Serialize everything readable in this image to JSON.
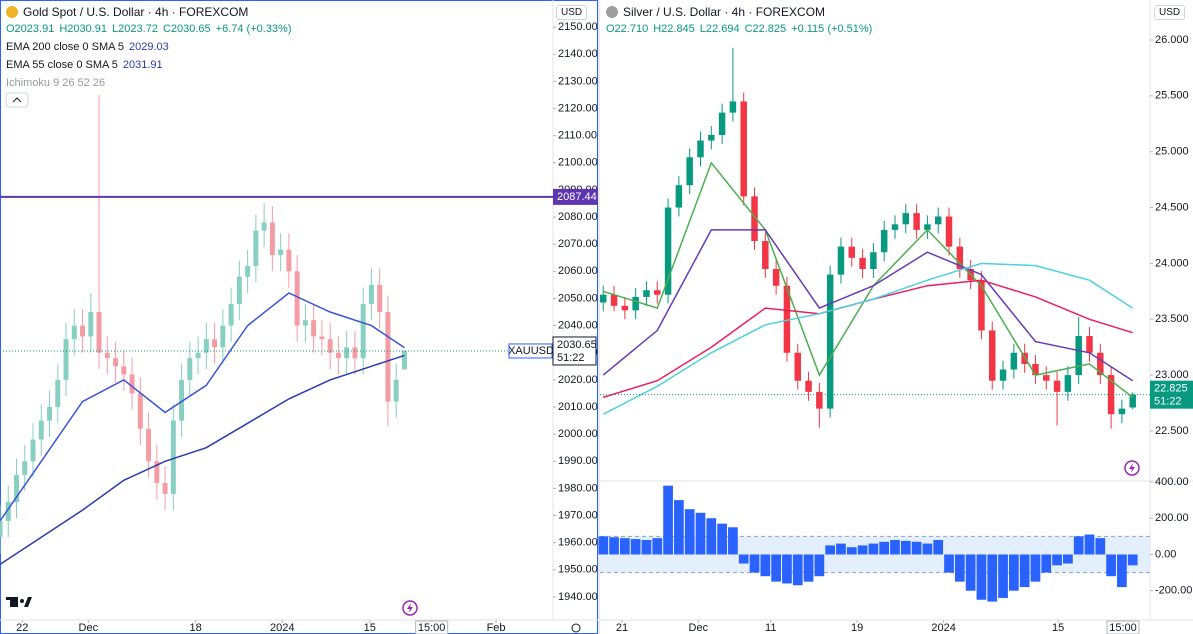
{
  "chart_data": [
    {
      "type": "candlestick",
      "title": "Gold Spot / U.S. Dollar · 4h · FOREXCOM",
      "currency": "USD",
      "quote": [
        "O2023.91",
        "H2030.91",
        "L2023.72",
        "C2030.65",
        "+6.74 (+0.33%)"
      ],
      "indicators": [
        {
          "name": "EMA 200 close 0 SMA 5",
          "value": 2029.03
        },
        {
          "name": "EMA 55 close 0 SMA 5",
          "value": 2031.91
        },
        {
          "name": "Ichimoku 9 26 52 26"
        }
      ],
      "up_color": "#86cfc1",
      "down_color": "#f49ca4",
      "x": [
        0,
        1,
        2,
        3,
        4,
        5,
        6,
        7,
        8,
        9,
        10,
        11,
        12,
        13,
        14,
        15,
        16,
        17,
        18,
        19,
        20,
        21,
        22,
        23,
        24,
        25,
        26,
        27,
        28,
        29,
        30,
        31,
        32,
        33,
        34,
        35,
        36,
        37,
        38,
        39,
        40,
        41,
        42,
        43,
        44,
        45,
        46,
        47,
        48,
        49
      ],
      "open": [
        1962,
        1968,
        1975,
        1985,
        1990,
        1998,
        2005,
        2010,
        2020,
        2035,
        2040,
        2036,
        2045,
        2030,
        2028,
        2025,
        2022,
        2015,
        2002,
        1990,
        1982,
        1978,
        2005,
        2020,
        2028,
        2030,
        2035,
        2032,
        2040,
        2048,
        2058,
        2062,
        2075,
        2078,
        2066,
        2068,
        2060,
        2040,
        2042,
        2036,
        2035,
        2030,
        2028,
        2032,
        2028,
        2048,
        2055,
        2045,
        2012,
        2023.91
      ],
      "high": [
        1974,
        1981,
        1991,
        1996,
        2004,
        2011,
        2016,
        2026,
        2041,
        2046,
        2046,
        2052,
        2125,
        2036,
        2034,
        2031,
        2028,
        2021,
        2008,
        1996,
        1988,
        2011,
        2026,
        2034,
        2036,
        2041,
        2041,
        2046,
        2054,
        2064,
        2068,
        2081,
        2085,
        2084,
        2074,
        2074,
        2066,
        2048,
        2048,
        2042,
        2041,
        2036,
        2038,
        2038,
        2054,
        2061,
        2061,
        2051,
        2026,
        2030.91
      ],
      "low": [
        1956,
        1962,
        1969,
        1979,
        1984,
        1992,
        1999,
        2004,
        2014,
        2029,
        2030,
        2030,
        2024,
        2022,
        2019,
        2016,
        2009,
        1996,
        1984,
        1976,
        1972,
        1972,
        1999,
        2014,
        2022,
        2024,
        2026,
        2026,
        2034,
        2042,
        2052,
        2056,
        2069,
        2060,
        2060,
        2054,
        2034,
        2034,
        2030,
        2029,
        2024,
        2022,
        2022,
        2022,
        2022,
        2042,
        2039,
        2003,
        2006,
        2023.72
      ],
      "close": [
        1968,
        1975,
        1985,
        1990,
        1998,
        2005,
        2010,
        2020,
        2035,
        2040,
        2036,
        2045,
        2030,
        2028,
        2025,
        2022,
        2015,
        2002,
        1990,
        1982,
        1978,
        2005,
        2020,
        2028,
        2030,
        2035,
        2032,
        2040,
        2048,
        2058,
        2062,
        2075,
        2078,
        2066,
        2068,
        2060,
        2040,
        2042,
        2036,
        2035,
        2030,
        2028,
        2032,
        2028,
        2048,
        2055,
        2045,
        2012,
        2020,
        2030.65
      ],
      "series": [
        {
          "name": "EMA 200 close 0 SMA 5",
          "color": "#2a3bb0",
          "x": [
            0,
            5,
            10,
            15,
            20,
            25,
            30,
            35,
            40,
            45,
            49
          ],
          "values": [
            1952,
            1962,
            1972,
            1983,
            1990,
            1995,
            2004,
            2013,
            2020,
            2025,
            2029.03
          ]
        },
        {
          "name": "EMA 55 close 0 SMA 5",
          "color": "#3a55d8",
          "x": [
            0,
            5,
            10,
            15,
            20,
            25,
            30,
            35,
            40,
            45,
            49
          ],
          "values": [
            1968,
            1990,
            2012,
            2020,
            2008,
            2018,
            2040,
            2052,
            2045,
            2040,
            2031.91
          ]
        }
      ],
      "hline": {
        "value": 2087.44,
        "color": "#5e35b1"
      },
      "price_marker": {
        "symbol": "XAUUSD",
        "value": 2030.65,
        "countdown": "51:22"
      },
      "xlim": [
        0,
        67
      ],
      "xticks": [
        {
          "value": 2.7,
          "label": "22"
        },
        {
          "value": 10.7,
          "label": "Dec"
        },
        {
          "value": 23.7,
          "label": "18"
        },
        {
          "value": 34.2,
          "label": "2024"
        },
        {
          "value": 44.8,
          "label": "15"
        },
        {
          "value": 52.3,
          "label": "15:00"
        },
        {
          "value": 60.1,
          "label": "Feb"
        }
      ],
      "ylim": [
        1931.5,
        2160
      ],
      "yticks": [
        {
          "value": 1940,
          "label": "1940.00"
        },
        {
          "value": 1950,
          "label": "1950.00"
        },
        {
          "value": 1960,
          "label": "1960.00"
        },
        {
          "value": 1970,
          "label": "1970.00"
        },
        {
          "value": 1980,
          "label": "1980.00"
        },
        {
          "value": 1990,
          "label": "1990.00"
        },
        {
          "value": 2000,
          "label": "2000.00"
        },
        {
          "value": 2010,
          "label": "2010.00"
        },
        {
          "value": 2020,
          "label": "2020.00"
        },
        {
          "value": 2030,
          "label": "2030.00"
        },
        {
          "value": 2040,
          "label": "2040.00"
        },
        {
          "value": 2050,
          "label": "2050.00"
        },
        {
          "value": 2060,
          "label": "2060.00"
        },
        {
          "value": 2070,
          "label": "2070.00"
        },
        {
          "value": 2080,
          "label": "2080.00"
        },
        {
          "value": 2090,
          "label": "2090.00"
        },
        {
          "value": 2100,
          "label": "2100.00"
        },
        {
          "value": 2110,
          "label": "2110.00"
        },
        {
          "value": 2120,
          "label": "2120.00"
        },
        {
          "value": 2130,
          "label": "2130.00"
        },
        {
          "value": 2140,
          "label": "2140.00"
        },
        {
          "value": 2150,
          "label": "2150.00"
        }
      ]
    },
    {
      "type": "candlestick",
      "title": "Silver / U.S. Dollar · 4h · FOREXCOM",
      "currency": "USD",
      "quote": [
        "O22.710",
        "H22.845",
        "L22.694",
        "C22.825",
        "+0.115 (+0.51%)"
      ],
      "up_color": "#089981",
      "down_color": "#f23645",
      "x": [
        0,
        1,
        2,
        3,
        4,
        5,
        6,
        7,
        8,
        9,
        10,
        11,
        12,
        13,
        14,
        15,
        16,
        17,
        18,
        19,
        20,
        21,
        22,
        23,
        24,
        25,
        26,
        27,
        28,
        29,
        30,
        31,
        32,
        33,
        34,
        35,
        36,
        37,
        38,
        39,
        40,
        41,
        42,
        43,
        44,
        45,
        46,
        47,
        48,
        49
      ],
      "open": [
        23.65,
        23.72,
        23.62,
        23.58,
        23.7,
        23.76,
        23.72,
        24.5,
        24.7,
        24.95,
        25.1,
        25.15,
        25.35,
        25.45,
        24.6,
        24.2,
        23.95,
        23.8,
        23.2,
        22.95,
        22.85,
        22.7,
        23.9,
        24.15,
        24.05,
        23.95,
        24.1,
        24.3,
        24.35,
        24.45,
        24.3,
        24.35,
        24.42,
        24.15,
        23.95,
        23.85,
        23.4,
        22.95,
        23.05,
        23.2,
        23.1,
        23.0,
        22.95,
        22.85,
        23.0,
        23.35,
        23.2,
        23.0,
        22.65,
        22.71
      ],
      "high": [
        23.8,
        23.8,
        23.7,
        23.78,
        23.84,
        23.84,
        24.58,
        24.78,
        25.03,
        25.18,
        25.23,
        25.43,
        25.93,
        25.53,
        24.68,
        24.28,
        24.03,
        23.88,
        23.28,
        23.03,
        22.93,
        23.98,
        24.23,
        24.23,
        24.13,
        24.18,
        24.38,
        24.43,
        24.53,
        24.53,
        24.43,
        24.5,
        24.5,
        24.23,
        24.03,
        23.93,
        23.48,
        23.13,
        23.28,
        23.28,
        23.18,
        23.08,
        23.03,
        23.08,
        23.52,
        23.43,
        23.28,
        23.08,
        22.78,
        22.845
      ],
      "low": [
        23.57,
        23.57,
        23.5,
        23.5,
        23.62,
        23.64,
        23.64,
        24.42,
        24.62,
        24.87,
        25.02,
        25.07,
        25.27,
        24.52,
        24.12,
        23.87,
        23.72,
        23.12,
        22.87,
        22.77,
        22.53,
        22.62,
        23.82,
        23.97,
        23.87,
        23.87,
        24.02,
        24.22,
        24.27,
        24.22,
        24.22,
        24.27,
        24.07,
        23.87,
        23.77,
        23.32,
        22.87,
        22.87,
        22.97,
        23.02,
        22.92,
        22.87,
        22.55,
        22.77,
        22.92,
        23.12,
        22.92,
        22.52,
        22.57,
        22.694
      ],
      "close": [
        23.72,
        23.62,
        23.58,
        23.7,
        23.76,
        23.72,
        24.5,
        24.7,
        24.95,
        25.1,
        25.15,
        25.35,
        25.45,
        24.6,
        24.2,
        23.95,
        23.8,
        23.2,
        22.95,
        22.85,
        22.7,
        23.9,
        24.15,
        24.05,
        23.95,
        24.1,
        24.3,
        24.35,
        24.45,
        24.3,
        24.35,
        24.42,
        24.15,
        23.95,
        23.85,
        23.4,
        22.95,
        23.05,
        23.2,
        23.1,
        23.0,
        22.95,
        22.85,
        23.0,
        23.35,
        23.2,
        23.0,
        22.65,
        22.7,
        22.825
      ],
      "series": [
        {
          "color": "#4caf50",
          "x": [
            0,
            5,
            10,
            15,
            20,
            25,
            30,
            35,
            40,
            45,
            49
          ],
          "values": [
            23.75,
            23.6,
            24.9,
            24.3,
            23.0,
            23.8,
            24.3,
            23.8,
            23.0,
            23.1,
            22.8
          ]
        },
        {
          "color": "#673ab7",
          "x": [
            0,
            5,
            10,
            15,
            20,
            25,
            30,
            35,
            40,
            45,
            49
          ],
          "values": [
            23.0,
            23.4,
            24.3,
            24.3,
            23.6,
            23.8,
            24.1,
            23.9,
            23.3,
            23.2,
            22.95
          ]
        },
        {
          "color": "#e91e63",
          "x": [
            0,
            5,
            10,
            15,
            20,
            25,
            30,
            35,
            40,
            45,
            49
          ],
          "values": [
            22.8,
            22.95,
            23.25,
            23.6,
            23.55,
            23.68,
            23.8,
            23.85,
            23.7,
            23.5,
            23.38
          ]
        },
        {
          "color": "#4dd0e1",
          "x": [
            0,
            5,
            10,
            15,
            20,
            25,
            30,
            35,
            40,
            45,
            49
          ],
          "values": [
            22.65,
            22.9,
            23.2,
            23.45,
            23.55,
            23.68,
            23.85,
            24.0,
            23.98,
            23.85,
            23.6
          ]
        }
      ],
      "price_marker": {
        "value": 22.825,
        "countdown": "51:22"
      },
      "xlim": [
        -0.3,
        50.6
      ],
      "xticks": [
        {
          "value": 1.74,
          "label": "21"
        },
        {
          "value": 8.8,
          "label": "Dec"
        },
        {
          "value": 15.5,
          "label": "11"
        },
        {
          "value": 23.5,
          "label": "19"
        },
        {
          "value": 31.5,
          "label": "2024"
        },
        {
          "value": 42.1,
          "label": "15"
        },
        {
          "value": 48.1,
          "label": "15:00"
        }
      ],
      "ylim": [
        22.061,
        26.358
      ],
      "yticks": [
        {
          "value": 22.5,
          "label": "22.500"
        },
        {
          "value": 23,
          "label": "23.000"
        },
        {
          "value": 23.5,
          "label": "23.500"
        },
        {
          "value": 24,
          "label": "24.000"
        },
        {
          "value": 24.5,
          "label": "24.500"
        },
        {
          "value": 25,
          "label": "25.000"
        },
        {
          "value": 25.5,
          "label": "25.500"
        },
        {
          "value": 26,
          "label": "26.000"
        }
      ]
    },
    {
      "type": "bar",
      "color": "#2962ff",
      "band": [
        -100,
        100
      ],
      "x": [
        0,
        1,
        2,
        3,
        4,
        5,
        6,
        7,
        8,
        9,
        10,
        11,
        12,
        13,
        14,
        15,
        16,
        17,
        18,
        19,
        20,
        21,
        22,
        23,
        24,
        25,
        26,
        27,
        28,
        29,
        30,
        31,
        32,
        33,
        34,
        35,
        36,
        37,
        38,
        39,
        40,
        41,
        42,
        43,
        44,
        45,
        46,
        47,
        48,
        49
      ],
      "values": [
        100,
        95,
        90,
        85,
        80,
        90,
        380,
        300,
        250,
        230,
        200,
        170,
        150,
        -50,
        -100,
        -120,
        -150,
        -160,
        -170,
        -150,
        -120,
        50,
        60,
        40,
        50,
        60,
        70,
        80,
        75,
        70,
        60,
        80,
        -100,
        -150,
        -200,
        -250,
        -260,
        -240,
        -200,
        -180,
        -150,
        -100,
        -60,
        -50,
        100,
        110,
        90,
        -120,
        -180,
        -60
      ],
      "xlim": [
        -0.3,
        50.6
      ],
      "ylim": [
        -290,
        400
      ],
      "yticks": [
        {
          "value": -200,
          "label": "-200.00"
        },
        {
          "value": 0,
          "label": "0.00"
        },
        {
          "value": 200,
          "label": "200.00"
        },
        {
          "value": 400,
          "label": "400.00"
        }
      ]
    }
  ]
}
